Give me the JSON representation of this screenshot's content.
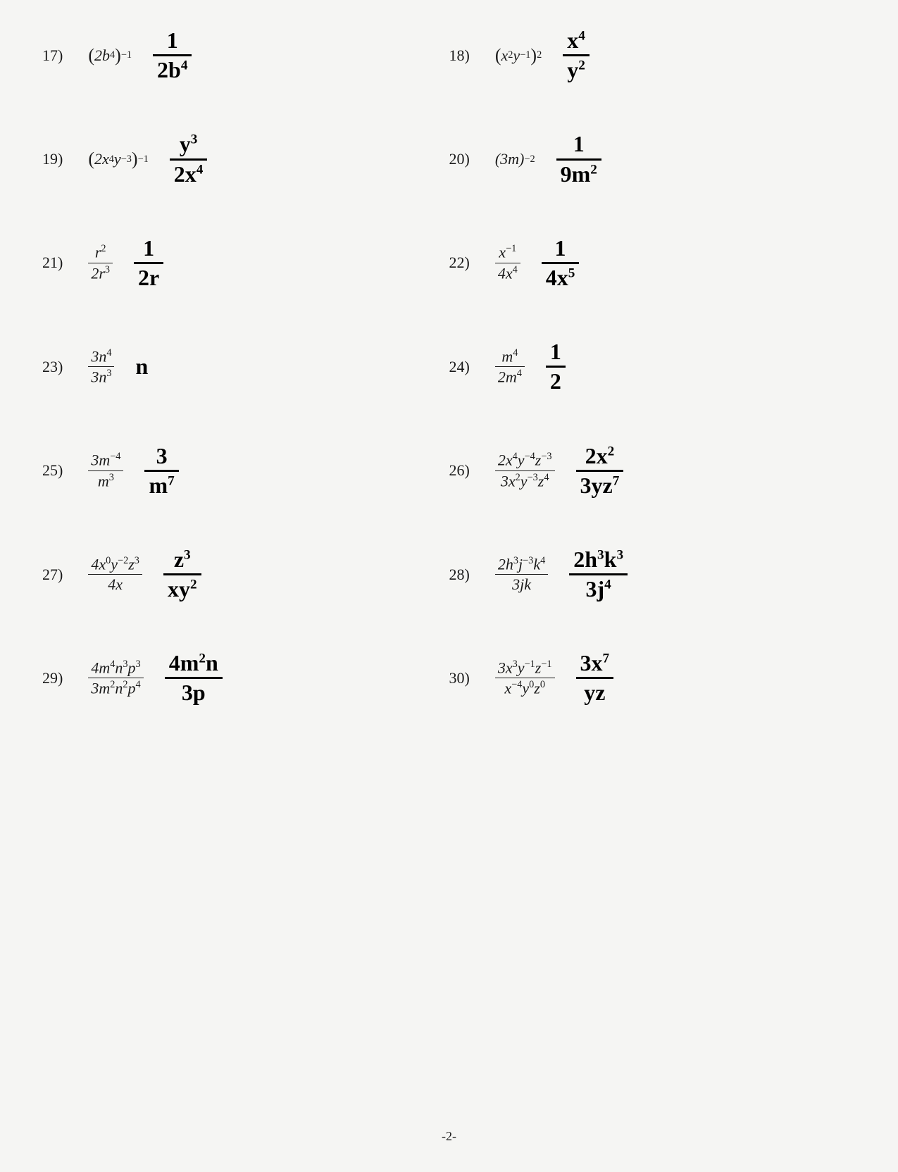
{
  "page_number": "-2-",
  "problems": [
    {
      "num": "17)",
      "printed_html": "<span class='paren'>(</span>2<i>b</i><sup>4</sup><span class='paren'>)</span><sup>−1</sup>",
      "answer_top": "1",
      "answer_bot": "2b<span class='hsup'>4</span>"
    },
    {
      "num": "18)",
      "printed_html": "<span class='paren'>(</span><i>x</i><sup>2</sup><i>y</i><sup>−1</sup><span class='paren'>)</span><sup>2</sup>",
      "answer_top": "x<span class='hsup'>4</span>",
      "answer_bot": "y<span class='hsup'>2</span>"
    },
    {
      "num": "19)",
      "printed_html": "<span class='paren'>(</span>2<i>x</i><sup>4</sup><i>y</i><sup>−3</sup><span class='paren'>)</span><sup>−1</sup>",
      "answer_top": "y<span class='hsup'>3</span>",
      "answer_bot": "2x<span class='hsup'>4</span>"
    },
    {
      "num": "20)",
      "printed_html": "(3<i>m</i>)<sup>−2</sup>",
      "answer_top": "1",
      "answer_bot": "9m<span class='hsup'>2</span>"
    },
    {
      "num": "21)",
      "printed_frac_top": "<i>r</i><sup>2</sup>",
      "printed_frac_bot": "2<i>r</i><sup>3</sup>",
      "answer_top": "1",
      "answer_bot": "2r"
    },
    {
      "num": "22)",
      "printed_frac_top": "<i>x</i><sup>−1</sup>",
      "printed_frac_bot": "4<i>x</i><sup>4</sup>",
      "answer_top": "1",
      "answer_bot": "4x<span class='hsup'>5</span>"
    },
    {
      "num": "23)",
      "printed_frac_top": "3<i>n</i><sup>4</sup>",
      "printed_frac_bot": "3<i>n</i><sup>3</sup>",
      "answer_inline": "n"
    },
    {
      "num": "24)",
      "printed_frac_top": "<i>m</i><sup>4</sup>",
      "printed_frac_bot": "2<i>m</i><sup>4</sup>",
      "answer_top": "1",
      "answer_bot": "2"
    },
    {
      "num": "25)",
      "printed_frac_top": "3<i>m</i><sup>−4</sup>",
      "printed_frac_bot": "<i>m</i><sup>3</sup>",
      "answer_top": "3",
      "answer_bot": "m<span class='hsup'>7</span>"
    },
    {
      "num": "26)",
      "printed_frac_top": "2<i>x</i><sup>4</sup><i>y</i><sup>−4</sup><i>z</i><sup>−3</sup>",
      "printed_frac_bot": "3<i>x</i><sup>2</sup><i>y</i><sup>−3</sup><i>z</i><sup>4</sup>",
      "answer_top": "2x<span class='hsup'>2</span>",
      "answer_bot": "3yz<span class='hsup'>7</span>"
    },
    {
      "num": "27)",
      "printed_frac_top": "4<i>x</i><sup>0</sup><i>y</i><sup>−2</sup><i>z</i><sup>3</sup>",
      "printed_frac_bot": "4<i>x</i>",
      "answer_top": "z<span class='hsup'>3</span>",
      "answer_bot": "xy<span class='hsup'>2</span>"
    },
    {
      "num": "28)",
      "printed_frac_top": "2<i>h</i><sup>3</sup><i>j</i><sup>−3</sup><i>k</i><sup>4</sup>",
      "printed_frac_bot": "3<i>jk</i>",
      "answer_top": "2h<span class='hsup'>3</span>k<span class='hsup'>3</span>",
      "answer_bot": "3j<span class='hsup'>4</span>"
    },
    {
      "num": "29)",
      "printed_frac_top": "4<i>m</i><sup>4</sup><i>n</i><sup>3</sup><i>p</i><sup>3</sup>",
      "printed_frac_bot": "3<i>m</i><sup>2</sup><i>n</i><sup>2</sup><i>p</i><sup>4</sup>",
      "answer_top": "4m<span class='hsup'>2</span>n",
      "answer_bot": "3p"
    },
    {
      "num": "30)",
      "printed_frac_top": "3<i>x</i><sup>3</sup><i>y</i><sup>−1</sup><i>z</i><sup>−1</sup>",
      "printed_frac_bot": "<i>x</i><sup>−4</sup><i>y</i><sup>0</sup><i>z</i><sup>0</sup>",
      "answer_top": "3x<span class='hsup'>7</span>",
      "answer_bot": "yz"
    }
  ]
}
